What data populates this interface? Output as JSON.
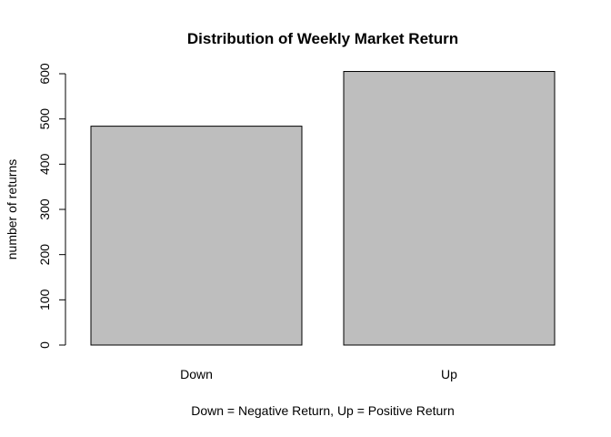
{
  "chart_data": {
    "type": "bar",
    "title": "Distribution of Weekly Market Return",
    "xlabel": "Down = Negative Return, Up = Positive Return",
    "ylabel": "number of returns",
    "categories": [
      "Down",
      "Up"
    ],
    "values": [
      484,
      605
    ],
    "ylim": [
      0,
      600
    ],
    "yticks": [
      0,
      100,
      200,
      300,
      400,
      500,
      600
    ],
    "bar_color": "#bebebe",
    "bar_border_color": "#000000",
    "grid": false,
    "legend": "none"
  }
}
